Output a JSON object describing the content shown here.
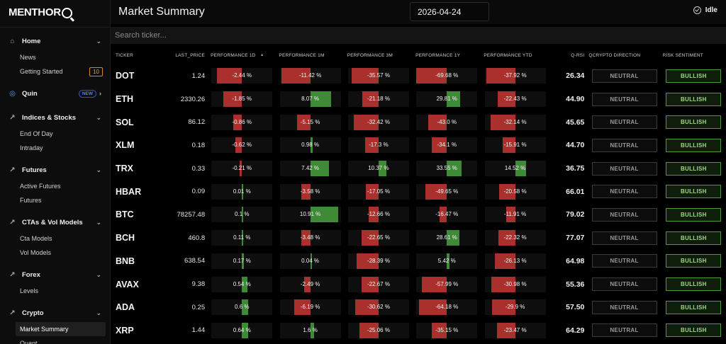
{
  "app": {
    "logo_text": "MENTHOR",
    "logo_letter": "Q"
  },
  "sidebar": {
    "sections": [
      {
        "label": "Home",
        "icon": "home-icon",
        "items": [
          {
            "label": "News"
          },
          {
            "label": "Getting Started",
            "badge": "10"
          }
        ]
      },
      {
        "label": "Quin",
        "icon": "quin-icon",
        "badge": "NEW",
        "chevron": "›"
      },
      {
        "label": "Indices & Stocks",
        "icon": "chart-icon",
        "items": [
          {
            "label": "End Of Day"
          },
          {
            "label": "Intraday"
          }
        ]
      },
      {
        "label": "Futures",
        "icon": "chart-icon",
        "items": [
          {
            "label": "Active Futures"
          },
          {
            "label": "Futures"
          }
        ]
      },
      {
        "label": "CTAs & Vol Models",
        "icon": "chart-icon",
        "items": [
          {
            "label": "Cta Models"
          },
          {
            "label": "Vol Models"
          }
        ]
      },
      {
        "label": "Forex",
        "icon": "chart-icon",
        "items": [
          {
            "label": "Levels"
          }
        ]
      },
      {
        "label": "Crypto",
        "icon": "chart-icon",
        "items": [
          {
            "label": "Market Summary",
            "active": true
          },
          {
            "label": "Quant"
          }
        ]
      }
    ]
  },
  "header": {
    "title": "Market Summary",
    "date": "2026-04-24",
    "status": "Idle"
  },
  "search": {
    "placeholder": "Search ticker..."
  },
  "table": {
    "columns": [
      "TICKER",
      "LAST_PRICE",
      "PERFORMANCE 1D",
      "PERFORMANCE 1M",
      "PERFORMANCE 3M",
      "PERFORMANCE 1Y",
      "PERFORMANCE YTD",
      "Q-RSI",
      "QCRYPTO DIRECTION",
      "RISK SENTIMENT"
    ],
    "sorted_column": "PERFORMANCE 1D",
    "colors": {
      "negative": "#a9302c",
      "positive": "#3f8a36"
    },
    "rows": [
      {
        "ticker": "DOT",
        "price": "1.24",
        "perf": [
          "-2.44 %",
          "-11.42 %",
          "-35.57 %",
          "-69.68 %",
          "-37.92 %"
        ],
        "qrsi": "26.34",
        "direction": "NEUTRAL",
        "sentiment": "BULLISH"
      },
      {
        "ticker": "ETH",
        "price": "2330.26",
        "perf": [
          "-1.85 %",
          "8.07 %",
          "-21.18 %",
          "29.81 %",
          "-22.43 %"
        ],
        "qrsi": "44.90",
        "direction": "NEUTRAL",
        "sentiment": "BULLISH"
      },
      {
        "ticker": "SOL",
        "price": "86.12",
        "perf": [
          "-0.86 %",
          "-5.15 %",
          "-32.42 %",
          "-43.0 %",
          "-32.14 %"
        ],
        "qrsi": "45.65",
        "direction": "NEUTRAL",
        "sentiment": "BULLISH"
      },
      {
        "ticker": "XLM",
        "price": "0.18",
        "perf": [
          "-0.62 %",
          "0.98 %",
          "-17.3 %",
          "-34.1 %",
          "-15.91 %"
        ],
        "qrsi": "44.70",
        "direction": "NEUTRAL",
        "sentiment": "BULLISH"
      },
      {
        "ticker": "TRX",
        "price": "0.33",
        "perf": [
          "-0.21 %",
          "7.42 %",
          "10.37 %",
          "33.55 %",
          "14.52 %"
        ],
        "qrsi": "36.75",
        "direction": "NEUTRAL",
        "sentiment": "BULLISH"
      },
      {
        "ticker": "HBAR",
        "price": "0.09",
        "perf": [
          "0.01 %",
          "-3.58 %",
          "-17.05 %",
          "-49.65 %",
          "-20.58 %"
        ],
        "qrsi": "66.01",
        "direction": "NEUTRAL",
        "sentiment": "BULLISH"
      },
      {
        "ticker": "BTC",
        "price": "78257.48",
        "perf": [
          "0.1 %",
          "10.91 %",
          "-12.66 %",
          "-16.47 %",
          "-11.91 %"
        ],
        "qrsi": "79.02",
        "direction": "NEUTRAL",
        "sentiment": "BULLISH"
      },
      {
        "ticker": "BCH",
        "price": "460.8",
        "perf": [
          "0.11 %",
          "-3.48 %",
          "-22.65 %",
          "28.61 %",
          "-22.32 %"
        ],
        "qrsi": "77.07",
        "direction": "NEUTRAL",
        "sentiment": "BULLISH"
      },
      {
        "ticker": "BNB",
        "price": "638.54",
        "perf": [
          "0.17 %",
          "0.04 %",
          "-28.39 %",
          "5.42 %",
          "-26.13 %"
        ],
        "qrsi": "64.98",
        "direction": "NEUTRAL",
        "sentiment": "BULLISH"
      },
      {
        "ticker": "AVAX",
        "price": "9.38",
        "perf": [
          "0.54 %",
          "-2.49 %",
          "-22.67 %",
          "-57.99 %",
          "-30.98 %"
        ],
        "qrsi": "55.36",
        "direction": "NEUTRAL",
        "sentiment": "BULLISH"
      },
      {
        "ticker": "ADA",
        "price": "0.25",
        "perf": [
          "0.6 %",
          "-6.19 %",
          "-30.62 %",
          "-64.18 %",
          "-29.9 %"
        ],
        "qrsi": "57.50",
        "direction": "NEUTRAL",
        "sentiment": "BULLISH"
      },
      {
        "ticker": "XRP",
        "price": "1.44",
        "perf": [
          "0.64 %",
          "1.6 %",
          "-25.06 %",
          "-35.15 %",
          "-23.47 %"
        ],
        "qrsi": "64.29",
        "direction": "NEUTRAL",
        "sentiment": "BULLISH"
      }
    ]
  }
}
